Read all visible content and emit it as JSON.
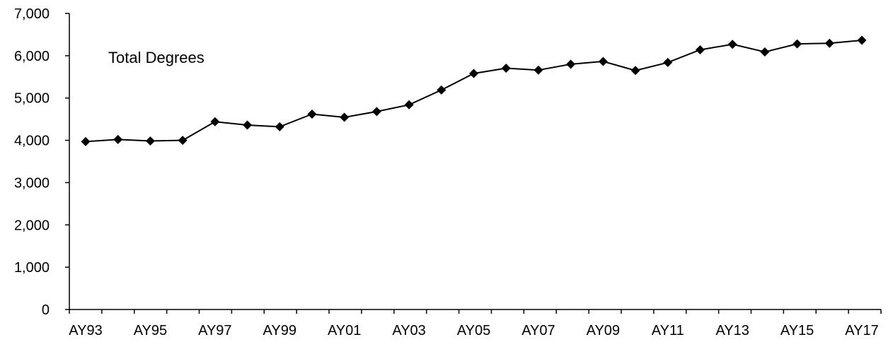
{
  "chart_data": {
    "type": "line",
    "title": "",
    "xlabel": "",
    "ylabel": "",
    "annotation": "Total Degrees",
    "ylim": [
      0,
      7000
    ],
    "y_ticks": [
      0,
      1000,
      2000,
      3000,
      4000,
      5000,
      6000,
      7000
    ],
    "y_tick_labels": [
      "0",
      "1,000",
      "2,000",
      "3,000",
      "4,000",
      "5,000",
      "6,000",
      "7,000"
    ],
    "x_tick_labels": [
      "AY93",
      "AY95",
      "AY97",
      "AY99",
      "AY01",
      "AY03",
      "AY05",
      "AY07",
      "AY09",
      "AY11",
      "AY13",
      "AY15",
      "AY17"
    ],
    "grid": false,
    "legend": "none",
    "marker": "diamond",
    "colors": {
      "line": "#000000",
      "marker": "#000000",
      "axis": "#000000"
    },
    "categories": [
      "AY93",
      "AY94",
      "AY95",
      "AY96",
      "AY97",
      "AY98",
      "AY99",
      "AY00",
      "AY01",
      "AY02",
      "AY03",
      "AY04",
      "AY05",
      "AY06",
      "AY07",
      "AY08",
      "AY09",
      "AY10",
      "AY11",
      "AY12",
      "AY13",
      "AY14",
      "AY15",
      "AY16",
      "AY17"
    ],
    "series": [
      {
        "values": [
          3970,
          4020,
          3985,
          4000,
          4440,
          4360,
          4320,
          4620,
          4545,
          4680,
          4840,
          5190,
          5580,
          5705,
          5660,
          5800,
          5865,
          5650,
          5840,
          6140,
          6270,
          6090,
          6280,
          6295,
          6365
        ]
      }
    ]
  }
}
